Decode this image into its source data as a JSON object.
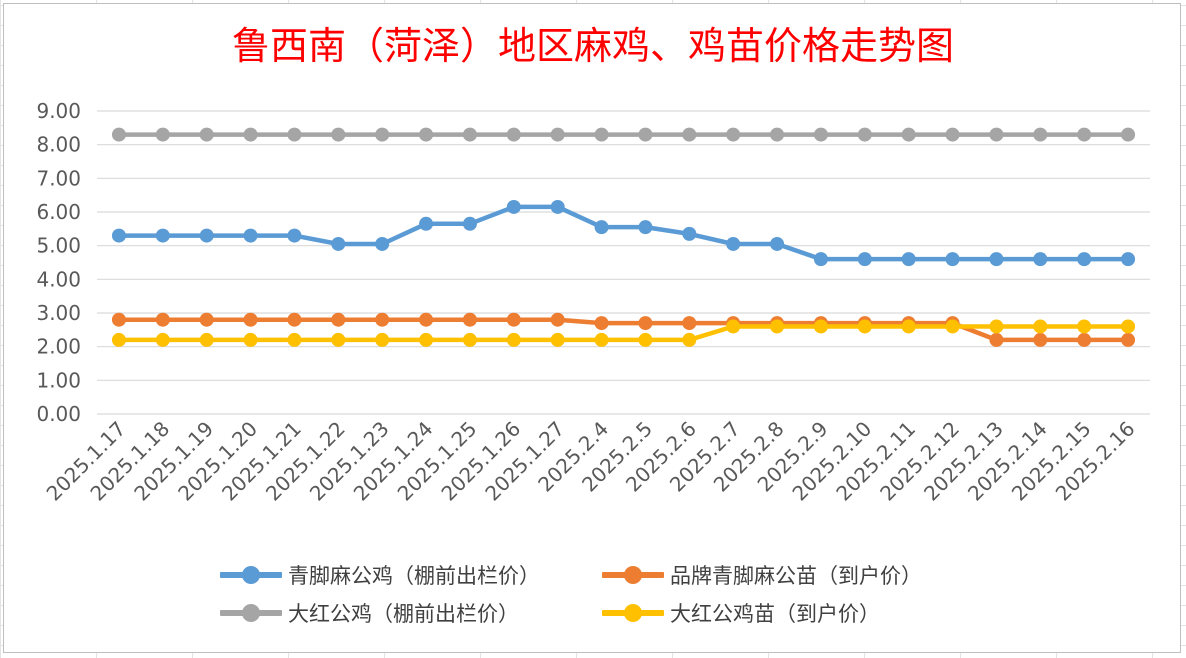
{
  "chart_data": {
    "type": "line",
    "title": "鲁西南（菏泽）地区麻鸡、鸡苗价格走势图",
    "xlabel": "",
    "ylabel": "",
    "ylim": [
      0,
      9
    ],
    "ytick_step": 1,
    "ytick_labels": [
      "0.00",
      "1.00",
      "2.00",
      "3.00",
      "4.00",
      "5.00",
      "6.00",
      "7.00",
      "8.00",
      "9.00"
    ],
    "grid": true,
    "legend_position": "bottom",
    "categories": [
      "2025.1.17",
      "2025.1.18",
      "2025.1.19",
      "2025.1.20",
      "2025.1.21",
      "2025.1.22",
      "2025.1.23",
      "2025.1.24",
      "2025.1.25",
      "2025.1.26",
      "2025.1.27",
      "2025.2.4",
      "2025.2.5",
      "2025.2.6",
      "2025.2.7",
      "2025.2.8",
      "2025.2.9",
      "2025.2.10",
      "2025.2.11",
      "2025.2.12",
      "2025.2.13",
      "2025.2.14",
      "2025.2.15",
      "2025.2.16"
    ],
    "series": [
      {
        "name": "青脚麻公鸡（棚前出栏价）",
        "color": "#5b9bd5",
        "values": [
          5.3,
          5.3,
          5.3,
          5.3,
          5.3,
          5.05,
          5.05,
          5.65,
          5.65,
          6.15,
          6.15,
          5.55,
          5.55,
          5.35,
          5.05,
          5.05,
          4.6,
          4.6,
          4.6,
          4.6,
          4.6,
          4.6,
          4.6,
          4.6
        ]
      },
      {
        "name": "品牌青脚麻公苗（到户价）",
        "color": "#ed7d31",
        "values": [
          2.8,
          2.8,
          2.8,
          2.8,
          2.8,
          2.8,
          2.8,
          2.8,
          2.8,
          2.8,
          2.8,
          2.7,
          2.7,
          2.7,
          2.7,
          2.7,
          2.7,
          2.7,
          2.7,
          2.7,
          2.2,
          2.2,
          2.2,
          2.2
        ]
      },
      {
        "name": "大红公鸡（棚前出栏价）",
        "color": "#a5a5a5",
        "values": [
          8.3,
          8.3,
          8.3,
          8.3,
          8.3,
          8.3,
          8.3,
          8.3,
          8.3,
          8.3,
          8.3,
          8.3,
          8.3,
          8.3,
          8.3,
          8.3,
          8.3,
          8.3,
          8.3,
          8.3,
          8.3,
          8.3,
          8.3,
          8.3
        ]
      },
      {
        "name": "大红公鸡苗（到户价）",
        "color": "#ffc000",
        "values": [
          2.2,
          2.2,
          2.2,
          2.2,
          2.2,
          2.2,
          2.2,
          2.2,
          2.2,
          2.2,
          2.2,
          2.2,
          2.2,
          2.2,
          2.6,
          2.6,
          2.6,
          2.6,
          2.6,
          2.6,
          2.6,
          2.6,
          2.6,
          2.6
        ]
      }
    ]
  }
}
